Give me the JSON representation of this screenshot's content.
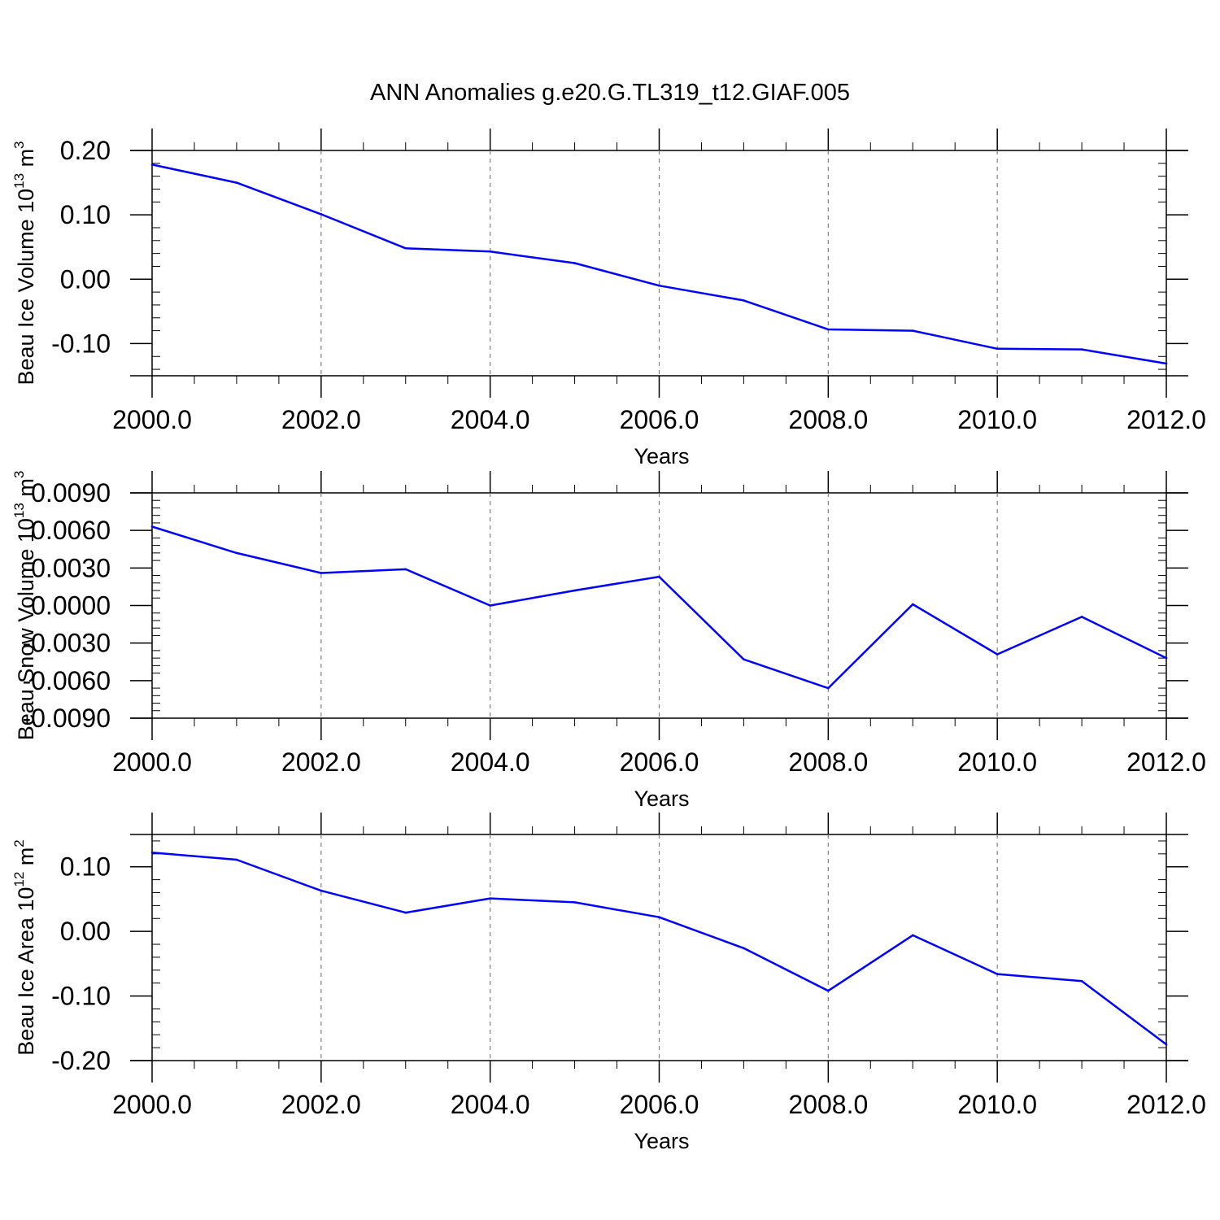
{
  "title": "ANN Anomalies g.e20.G.TL319_t12.GIAF.005",
  "colors": {
    "line": "#0000ff",
    "frame": "#000000",
    "grid": "#808080"
  },
  "chart_data": [
    {
      "type": "line",
      "title": "ANN Anomalies g.e20.G.TL319_t12.GIAF.005",
      "xlabel": "Years",
      "ylabel": {
        "text": "Beau Ice Volume 10",
        "sup1": "13",
        "mid": " m",
        "sup2": "3"
      },
      "xlim": [
        2000,
        2012
      ],
      "ylim": [
        -0.15,
        0.2
      ],
      "xticks": [
        "2000.0",
        "2002.0",
        "2004.0",
        "2006.0",
        "2008.0",
        "2010.0",
        "2012.0"
      ],
      "yticks": [
        {
          "value": 0.2,
          "label": "0.20"
        },
        {
          "value": 0.1,
          "label": "0.10"
        },
        {
          "value": 0.0,
          "label": "0.00"
        },
        {
          "value": -0.1,
          "label": "-0.10"
        }
      ],
      "x": [
        2000,
        2001,
        2002,
        2003,
        2004,
        2005,
        2006,
        2007,
        2008,
        2009,
        2010,
        2011,
        2012
      ],
      "values": [
        0.178,
        0.15,
        0.101,
        0.048,
        0.043,
        0.025,
        -0.01,
        -0.033,
        -0.078,
        -0.08,
        -0.108,
        -0.109,
        -0.131
      ]
    },
    {
      "type": "line",
      "xlabel": "Years",
      "ylabel": {
        "text": "Beau Snow Volume 10",
        "sup1": "13",
        "mid": " m",
        "sup2": "3"
      },
      "xlim": [
        2000,
        2012
      ],
      "ylim": [
        -0.009,
        0.009
      ],
      "xticks": [
        "2000.0",
        "2002.0",
        "2004.0",
        "2006.0",
        "2008.0",
        "2010.0",
        "2012.0"
      ],
      "yticks": [
        {
          "value": 0.009,
          "label": "0.0090"
        },
        {
          "value": 0.006,
          "label": "0.0060"
        },
        {
          "value": 0.003,
          "label": "0.0030"
        },
        {
          "value": 0.0,
          "label": "0.0000"
        },
        {
          "value": -0.003,
          "label": "-0.0030"
        },
        {
          "value": -0.006,
          "label": "-0.0060"
        },
        {
          "value": -0.009,
          "label": "-0.0090"
        }
      ],
      "x": [
        2000,
        2001,
        2002,
        2003,
        2004,
        2005,
        2006,
        2007,
        2008,
        2009,
        2010,
        2011,
        2012
      ],
      "values": [
        0.0063,
        0.0042,
        0.0026,
        0.0029,
        0.0,
        0.0012,
        0.0023,
        -0.0043,
        -0.0066,
        0.0001,
        -0.0039,
        -0.0009,
        -0.0042
      ]
    },
    {
      "type": "line",
      "xlabel": "Years",
      "ylabel": {
        "text": "Beau Ice Area 10",
        "sup1": "12",
        "mid": " m",
        "sup2": "2"
      },
      "xlim": [
        2000,
        2012
      ],
      "ylim": [
        -0.2,
        0.15
      ],
      "xticks": [
        "2000.0",
        "2002.0",
        "2004.0",
        "2006.0",
        "2008.0",
        "2010.0",
        "2012.0"
      ],
      "yticks": [
        {
          "value": 0.1,
          "label": "0.10"
        },
        {
          "value": 0.0,
          "label": "0.00"
        },
        {
          "value": -0.1,
          "label": "-0.10"
        },
        {
          "value": -0.2,
          "label": "-0.20"
        }
      ],
      "x": [
        2000,
        2001,
        2002,
        2003,
        2004,
        2005,
        2006,
        2007,
        2008,
        2009,
        2010,
        2011,
        2012
      ],
      "values": [
        0.122,
        0.111,
        0.063,
        0.029,
        0.051,
        0.045,
        0.022,
        -0.026,
        -0.092,
        -0.006,
        -0.066,
        -0.077,
        -0.175
      ]
    }
  ]
}
